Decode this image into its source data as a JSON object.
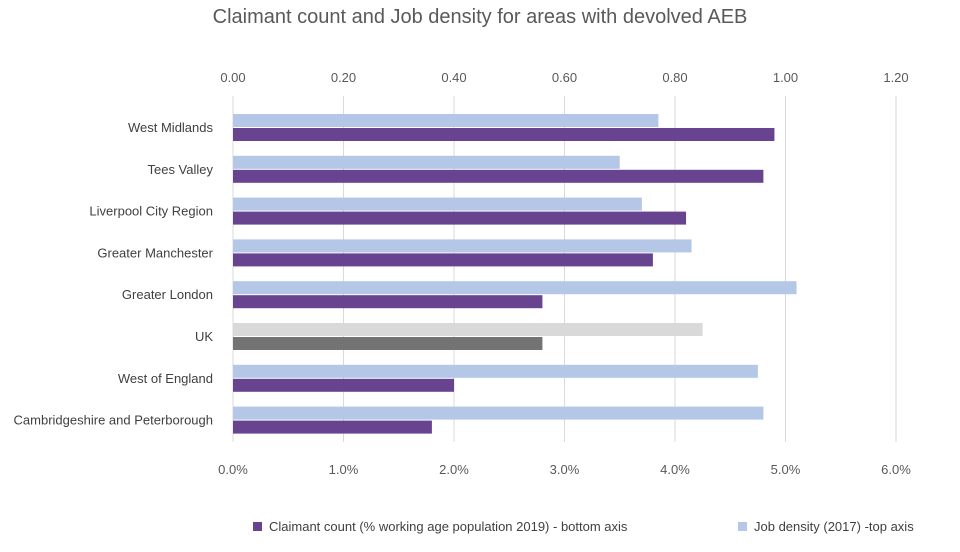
{
  "chart_data": {
    "type": "bar",
    "title": "Claimant count and Job density for areas with devolved AEB",
    "categories": [
      "West Midlands",
      "Tees Valley",
      "Liverpool City Region",
      "Greater Manchester",
      "Greater London",
      "UK",
      "West of England",
      "Cambridgeshire and Peterborough"
    ],
    "series": [
      {
        "name": "Job density (2017) -top axis",
        "axis": "top",
        "color": "#b4c7e7",
        "uk_color": "#d9d9d9",
        "values": [
          0.77,
          0.7,
          0.74,
          0.83,
          1.02,
          0.85,
          0.95,
          0.96
        ]
      },
      {
        "name": "Claimant count (% working age population 2019) - bottom axis",
        "axis": "bottom",
        "color": "#68438f",
        "uk_color": "#737373",
        "values": [
          4.9,
          4.8,
          4.1,
          3.8,
          2.8,
          2.8,
          2.0,
          1.8
        ]
      }
    ],
    "top_axis": {
      "range": [
        0,
        1.2
      ],
      "ticks": [
        "0.00",
        "0.20",
        "0.40",
        "0.60",
        "0.80",
        "1.00",
        "1.20"
      ]
    },
    "bottom_axis": {
      "range": [
        0,
        6
      ],
      "ticks": [
        "0.0%",
        "1.0%",
        "2.0%",
        "3.0%",
        "4.0%",
        "5.0%",
        "6.0%"
      ]
    },
    "grid": true,
    "legend_position": "bottom"
  }
}
